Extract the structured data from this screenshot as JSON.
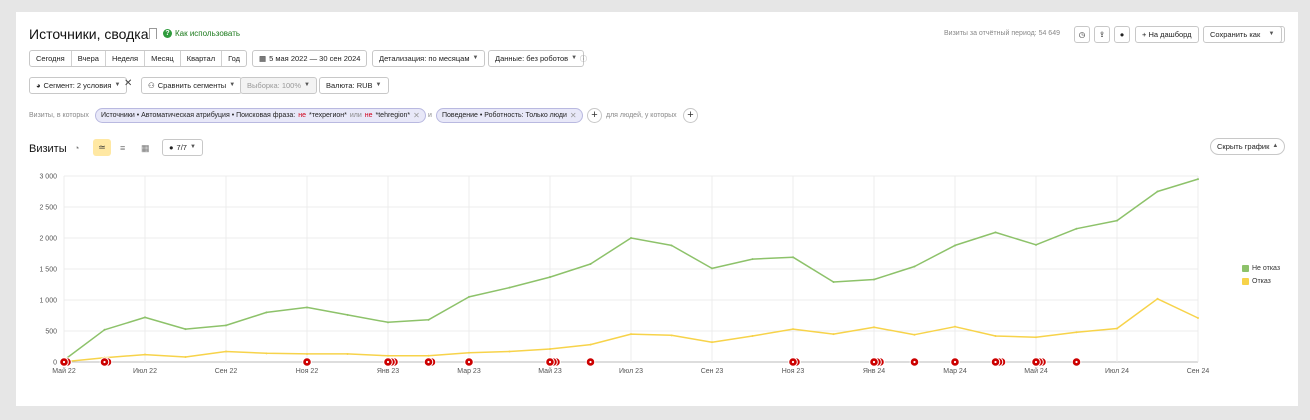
{
  "header": {
    "title": "Источники, сводка",
    "howto": "Как использовать",
    "howto_icon": "question-icon",
    "visits_total": "Визиты за отчётный период: 54 649",
    "add_dashboard": "+ На дашборд",
    "save_as": "Сохранить как"
  },
  "period": {
    "buttons": [
      "Сегодня",
      "Вчера",
      "Неделя",
      "Месяц",
      "Квартал",
      "Год"
    ],
    "range": "5 мая 2022 — 30 сен 2024",
    "detail": "Детализация: по месяцам",
    "data": "Данные: без роботов"
  },
  "segment": {
    "segment": "Сегмент: 2 условия",
    "compare": "Сравнить сегменты",
    "sample": "Выборка: 100%",
    "currency": "Валюта: RUB"
  },
  "filters": {
    "prefix": "Визиты, в которых",
    "chip1_a": "Источники • Автоматическая атрибуция • Поисковая фраза:",
    "chip1_neg1": "не",
    "chip1_b": "*техрегион*",
    "chip1_or": "или",
    "chip1_neg2": "не",
    "chip1_c": "*tehregion*",
    "and": "и",
    "chip2": "Поведение • Роботность: Только люди",
    "suffix": "для людей, у которых"
  },
  "chart_header": {
    "title": "Визиты",
    "series_count": "7/7",
    "hide": "Скрыть график"
  },
  "chart_data": {
    "type": "line",
    "x": [
      "Май 22",
      "Июн 22",
      "Июл 22",
      "Авг 22",
      "Сен 22",
      "Окт 22",
      "Ноя 22",
      "Дек 22",
      "Янв 23",
      "Фев 23",
      "Мар 23",
      "Апр 23",
      "Май 23",
      "Июн 23",
      "Июл 23",
      "Авг 23",
      "Сен 23",
      "Окт 23",
      "Ноя 23",
      "Дек 23",
      "Янв 24",
      "Фев 24",
      "Мар 24",
      "Апр 24",
      "Май 24",
      "Июн 24",
      "Июл 24",
      "Авг 24",
      "Сен 24"
    ],
    "x_tick_labels": [
      "Май 22",
      "Июл 22",
      "Сен 22",
      "Ноя 22",
      "Янв 23",
      "Мар 23",
      "Май 23",
      "Июл 23",
      "Сен 23",
      "Ноя 23",
      "Янв 24",
      "Мар 24",
      "Май 24",
      "Июл 24",
      "Сен 24"
    ],
    "y_ticks": [
      "0",
      "500",
      "1 000",
      "1 500",
      "2 000",
      "2 500",
      "3 000"
    ],
    "ylim": [
      0,
      3000
    ],
    "series": [
      {
        "name": "Не отказ",
        "color": "#8dc26a",
        "values": [
          30,
          520,
          720,
          530,
          590,
          800,
          880,
          760,
          640,
          680,
          1050,
          1200,
          1370,
          1580,
          2000,
          1880,
          1510,
          1660,
          1690,
          1290,
          1330,
          1540,
          1880,
          2090,
          1890,
          2150,
          2280,
          2750,
          2950
        ]
      },
      {
        "name": "Отказ",
        "color": "#f7d34a",
        "values": [
          5,
          70,
          120,
          80,
          170,
          140,
          130,
          130,
          100,
          100,
          150,
          170,
          210,
          280,
          450,
          430,
          320,
          420,
          530,
          450,
          560,
          440,
          570,
          420,
          400,
          480,
          540,
          1020,
          710
        ]
      }
    ],
    "annotation_color": "#cc0000",
    "annotations": [
      {
        "x_index": 0,
        "count": 2
      },
      {
        "x_index": 1,
        "count": 2
      },
      {
        "x_index": 6,
        "count": 1
      },
      {
        "x_index": 8,
        "count": 3
      },
      {
        "x_index": 9,
        "count": 2
      },
      {
        "x_index": 10,
        "count": 1
      },
      {
        "x_index": 12,
        "count": 3
      },
      {
        "x_index": 13,
        "count": 1
      },
      {
        "x_index": 18,
        "count": 2
      },
      {
        "x_index": 20,
        "count": 3
      },
      {
        "x_index": 21,
        "count": 1
      },
      {
        "x_index": 22,
        "count": 1
      },
      {
        "x_index": 23,
        "count": 3
      },
      {
        "x_index": 24,
        "count": 3
      },
      {
        "x_index": 25,
        "count": 1
      }
    ],
    "legend_placement": "right"
  }
}
